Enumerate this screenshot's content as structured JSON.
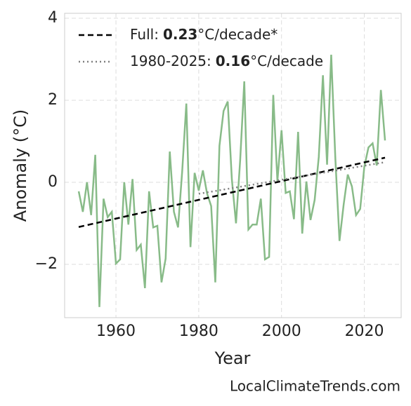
{
  "chart_data": {
    "type": "line",
    "y_label": "Anomaly (°C)",
    "x_label": "Year",
    "footer": "LocalClimateTrends.com",
    "xlim": [
      1947.6,
      2028.9
    ],
    "xticks": [
      1960,
      1980,
      2000,
      2020
    ],
    "ylim": [
      -3.3,
      4.12
    ],
    "yticks": [
      {
        "value": -2,
        "label": "−2"
      },
      0,
      2,
      4
    ],
    "grid": true,
    "legend_position": "upper left",
    "x": [
      1951,
      1952,
      1953,
      1954,
      1955,
      1956,
      1957,
      1958,
      1959,
      1960,
      1961,
      1962,
      1963,
      1964,
      1965,
      1966,
      1967,
      1968,
      1969,
      1970,
      1971,
      1972,
      1973,
      1974,
      1975,
      1976,
      1977,
      1978,
      1979,
      1980,
      1981,
      1982,
      1983,
      1984,
      1985,
      1986,
      1987,
      1988,
      1989,
      1990,
      1991,
      1992,
      1993,
      1994,
      1995,
      1996,
      1997,
      1998,
      1999,
      2000,
      2001,
      2002,
      2003,
      2004,
      2005,
      2006,
      2007,
      2008,
      2009,
      2010,
      2011,
      2012,
      2013,
      2014,
      2015,
      2016,
      2017,
      2018,
      2019,
      2020,
      2021,
      2022,
      2023,
      2024,
      2025
    ],
    "series": [
      {
        "color": "#88bb88",
        "values": [
          -0.22,
          -0.72,
          0.0,
          -0.8,
          0.67,
          -3.04,
          -0.4,
          -0.85,
          -0.72,
          -1.98,
          -1.88,
          0.0,
          -1.03,
          0.08,
          -1.65,
          -1.52,
          -2.58,
          -0.22,
          -1.1,
          -1.06,
          -2.44,
          -1.86,
          0.75,
          -0.72,
          -1.1,
          0.27,
          1.92,
          -1.58,
          0.23,
          -0.2,
          0.29,
          -0.27,
          -0.58,
          -2.44,
          0.89,
          1.74,
          1.97,
          0.07,
          -1.0,
          0.53,
          2.46,
          -1.15,
          -1.03,
          -1.03,
          -0.4,
          -1.88,
          -1.82,
          2.13,
          0.03,
          1.27,
          -0.26,
          -0.22,
          -0.9,
          1.23,
          -1.25,
          0.02,
          -0.92,
          -0.43,
          0.62,
          2.61,
          0.43,
          3.11,
          0.58,
          -1.43,
          -0.55,
          0.19,
          -0.1,
          -0.8,
          -0.65,
          0.38,
          0.85,
          0.95,
          0.41,
          2.25,
          1.02
        ]
      }
    ],
    "trends": [
      {
        "name_parts": [
          "Full:",
          "0.23",
          "°C/decade*"
        ],
        "color": "#000000",
        "dash": "8 5",
        "x": [
          1951,
          2025
        ],
        "values": [
          -1.09,
          0.6
        ]
      },
      {
        "name_parts": [
          "1980-2025:",
          "0.16",
          "°C/decade"
        ],
        "color": "#808080",
        "dash": "2 4",
        "x": [
          1980,
          2025
        ],
        "values": [
          -0.28,
          0.49
        ]
      }
    ]
  }
}
